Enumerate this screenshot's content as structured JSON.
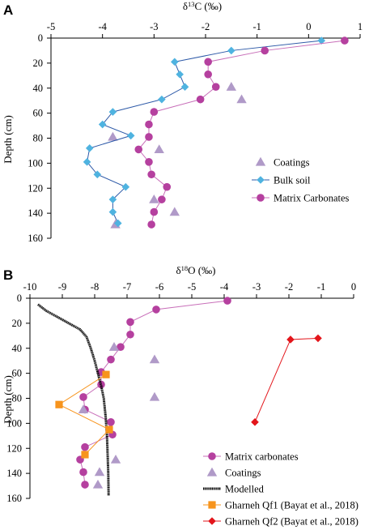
{
  "colors": {
    "matrix": "#b5409f",
    "matrix_line": "#c86fb9",
    "coatings": "#b09ac8",
    "bulk": "#4fb3e0",
    "bulk_line": "#2e5aa8",
    "modelled": "#000000",
    "qf1": "#f7941d",
    "qf1_line": "#f7941d",
    "qf2": "#e3151b",
    "qf2_line": "#e3151b"
  },
  "chart_data": [
    {
      "type": "scatter",
      "panel_label": "A",
      "xlabel": "δ13C (‰)",
      "ylabel": "Depth (cm)",
      "xlim": [
        -5,
        1
      ],
      "ylim": [
        0,
        160
      ],
      "y_inverted": true,
      "x_axis_position": "top",
      "x_ticks": [
        -5,
        -4,
        -3,
        -2,
        -1,
        0,
        1
      ],
      "y_ticks": [
        0,
        20,
        40,
        60,
        80,
        100,
        120,
        140,
        160
      ],
      "grid": false,
      "legend_position": "lower-right",
      "series": [
        {
          "name": "Coatings",
          "marker": "triangle",
          "color": "coatings",
          "line": false,
          "x": [
            -1.5,
            -1.3,
            -3.8,
            -2.9,
            -3.0,
            -2.6,
            -3.75
          ],
          "y": [
            39,
            49,
            79,
            89,
            129,
            139,
            149
          ]
        },
        {
          "name": "Bulk soil",
          "marker": "diamond",
          "color": "bulk",
          "line_color": "bulk_line",
          "line": true,
          "x": [
            0.25,
            -1.5,
            -2.6,
            -2.5,
            -2.4,
            -2.85,
            -3.8,
            -4.0,
            -3.45,
            -4.25,
            -4.3,
            -4.1,
            -3.55,
            -3.8,
            -3.8,
            -3.7
          ],
          "y": [
            2,
            10,
            19,
            29,
            39,
            49,
            59,
            69,
            78,
            88,
            99,
            109,
            119,
            129,
            139,
            148
          ]
        },
        {
          "name": "Matrix Carbonates",
          "marker": "circle",
          "color": "matrix",
          "line_color": "matrix_line",
          "line": true,
          "x": [
            0.7,
            -0.85,
            -1.95,
            -1.95,
            -1.8,
            -2.1,
            -3.0,
            -3.1,
            -3.1,
            -3.3,
            -3.1,
            -3.05,
            -2.75,
            -2.85,
            -3.0,
            -3.05
          ],
          "y": [
            2,
            10,
            19,
            29,
            39,
            49,
            59,
            69,
            79,
            89,
            99,
            109,
            119,
            129,
            139,
            149
          ]
        }
      ]
    },
    {
      "type": "scatter",
      "panel_label": "B",
      "xlabel": "δ18O (‰)",
      "ylabel": "Depth (cm)",
      "xlim": [
        -10,
        0
      ],
      "ylim": [
        0,
        160
      ],
      "y_inverted": true,
      "x_axis_position": "top",
      "x_ticks": [
        -10,
        -9,
        -8,
        -7,
        -6,
        -5,
        -4,
        -3,
        -2,
        -1,
        0
      ],
      "y_ticks": [
        0,
        20,
        40,
        60,
        80,
        100,
        120,
        140,
        160
      ],
      "grid": false,
      "legend_position": "lower-right",
      "series": [
        {
          "name": "Matrix carbonates",
          "marker": "circle",
          "color": "matrix",
          "line_color": "matrix_line",
          "line": true,
          "x": [
            -3.9,
            -6.1,
            -6.9,
            -6.9,
            -7.2,
            -7.5,
            -7.8,
            -7.8,
            -8.35,
            -8.3,
            -7.5,
            -7.45,
            -8.3,
            -8.45,
            -8.35,
            -8.3
          ],
          "y": [
            2,
            9,
            19,
            29,
            39,
            49,
            59,
            69,
            79,
            89,
            99,
            109,
            119,
            129,
            139,
            149
          ]
        },
        {
          "name": "Coatings",
          "marker": "triangle",
          "color": "coatings",
          "line": false,
          "x": [
            -7.4,
            -6.15,
            -6.15,
            -8.35,
            -7.35,
            -7.85,
            -7.9
          ],
          "y": [
            39,
            49,
            79,
            89,
            129,
            139,
            149
          ]
        },
        {
          "name": "Modelled",
          "marker": "none",
          "color": "modelled",
          "line": true,
          "dotted": true,
          "x": [
            -9.75,
            -9.5,
            -9.15,
            -8.8,
            -8.45,
            -8.25,
            -8.12,
            -8.0,
            -7.9,
            -7.8,
            -7.72,
            -7.66,
            -7.62,
            -7.6,
            -7.58,
            -7.57
          ],
          "y": [
            5,
            10,
            15,
            20,
            25,
            31,
            40,
            50,
            60,
            70,
            80,
            95,
            110,
            125,
            140,
            158
          ]
        },
        {
          "name": "Gharneh Qf1 (Bayat et al., 2018)",
          "marker": "square",
          "color": "qf1",
          "line_color": "qf1_line",
          "line": true,
          "x": [
            -7.65,
            -9.1,
            -7.55,
            -8.3
          ],
          "y": [
            61,
            85,
            105,
            125
          ]
        },
        {
          "name": "Gharneh Qf2 (Bayat et al., 2018)",
          "marker": "diamond",
          "color": "qf2",
          "line_color": "qf2_line",
          "line": true,
          "x": [
            -1.1,
            -1.95,
            -3.05
          ],
          "y": [
            32,
            33,
            99
          ]
        }
      ]
    }
  ]
}
